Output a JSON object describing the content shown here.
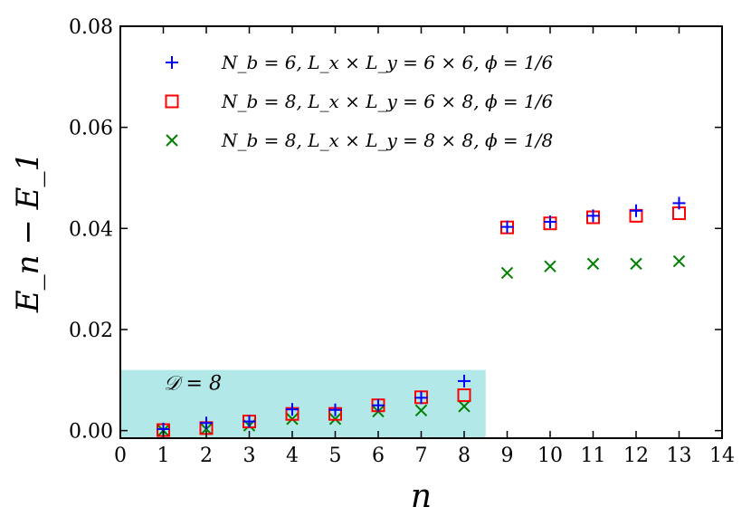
{
  "chart_data": {
    "type": "scatter",
    "xlabel": "n",
    "ylabel": "E_n − E_1",
    "xlim": [
      0,
      14
    ],
    "ylim": [
      -0.0015,
      0.08
    ],
    "x_ticks": [
      "0",
      "1",
      "2",
      "3",
      "4",
      "5",
      "6",
      "7",
      "8",
      "9",
      "10",
      "11",
      "12",
      "13",
      "14"
    ],
    "y_ticks": [
      "0.00",
      "0.02",
      "0.04",
      "0.06",
      "0.08"
    ],
    "grid": false,
    "legend_position": "top-left",
    "annotation": {
      "text": "𝒟 = 8",
      "region_x": [
        0,
        8.5
      ],
      "region_y": [
        -0.0015,
        0.012
      ],
      "color": "#b2e8e8"
    },
    "series": [
      {
        "name": "N_b = 6, L_x × L_y = 6 × 6, ϕ = 1/6",
        "marker": "plus",
        "color": "#0000ff",
        "x": [
          1,
          2,
          3,
          4,
          5,
          6,
          7,
          8,
          9,
          10,
          11,
          12,
          13
        ],
        "y": [
          0.0003,
          0.0015,
          0.0018,
          0.0042,
          0.0041,
          0.005,
          0.0065,
          0.0098,
          0.0403,
          0.0413,
          0.0425,
          0.0435,
          0.045
        ]
      },
      {
        "name": "N_b = 8, L_x × L_y = 6 × 8, ϕ = 1/6",
        "marker": "square",
        "color": "#ff0000",
        "x": [
          1,
          2,
          3,
          4,
          5,
          6,
          7,
          8,
          9,
          10,
          11,
          12,
          13
        ],
        "y": [
          0.0001,
          0.0005,
          0.0018,
          0.0033,
          0.0033,
          0.005,
          0.0066,
          0.007,
          0.0402,
          0.041,
          0.0422,
          0.0425,
          0.043
        ]
      },
      {
        "name": "N_b = 8, L_x × L_y = 8 × 8, ϕ = 1/8",
        "marker": "x",
        "color": "#008000",
        "x": [
          1,
          2,
          3,
          4,
          5,
          6,
          7,
          8,
          9,
          10,
          11,
          12,
          13
        ],
        "y": [
          0.0,
          0.0003,
          0.001,
          0.0023,
          0.0023,
          0.0038,
          0.004,
          0.0048,
          0.0312,
          0.0325,
          0.033,
          0.033,
          0.0335
        ]
      }
    ]
  }
}
